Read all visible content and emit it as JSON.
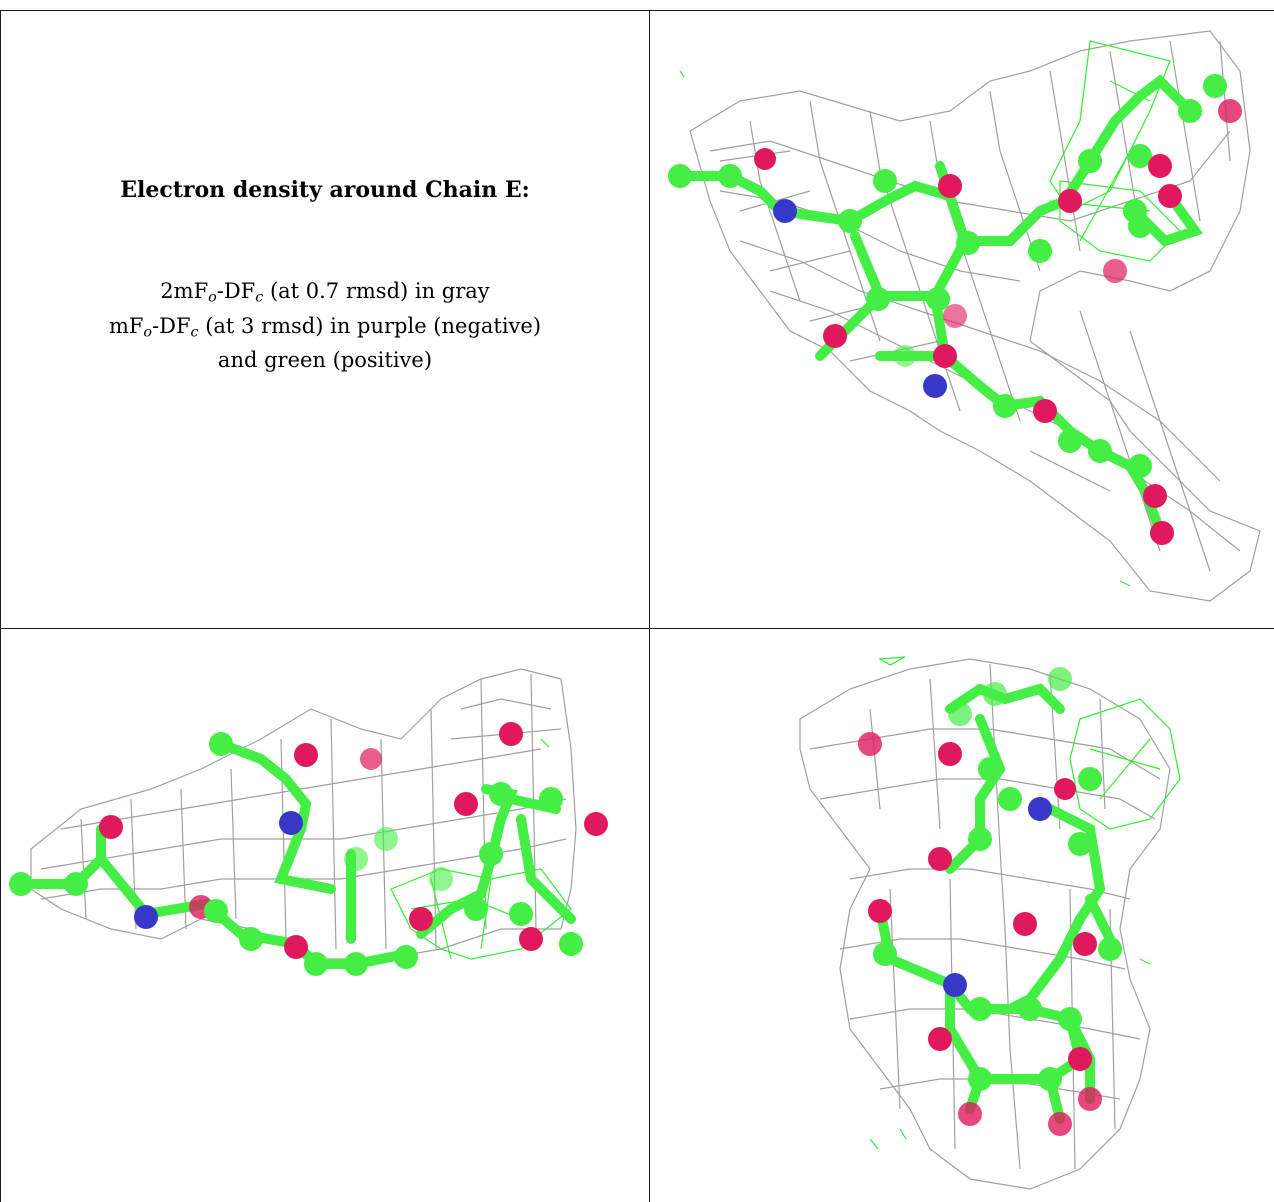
{
  "caption": {
    "title": "Electron density around Chain E:",
    "line1_a": "2mF",
    "line1_sub1": "o",
    "line1_b": "-DF",
    "line1_sub2": "c",
    "line1_c": " (at 0.7 rmsd) in gray",
    "line2_a": "mF",
    "line2_sub1": "o",
    "line2_b": "-DF",
    "line2_sub2": "c",
    "line2_c": " (at 3 rmsd) in purple (negative)",
    "line3": "and green (positive)"
  },
  "colors": {
    "mesh_gray": "#9a9a9a",
    "positive_green": "#33ee33",
    "carbon": "#44ee44",
    "oxygen": "#e0195f",
    "nitrogen": "#3838c8",
    "border": "#1a1a1a"
  },
  "panels": [
    {
      "name": "panel-top-right",
      "view": "density view 1"
    },
    {
      "name": "panel-bottom-left",
      "view": "density view 2"
    },
    {
      "name": "panel-bottom-right",
      "view": "density view 3"
    }
  ]
}
